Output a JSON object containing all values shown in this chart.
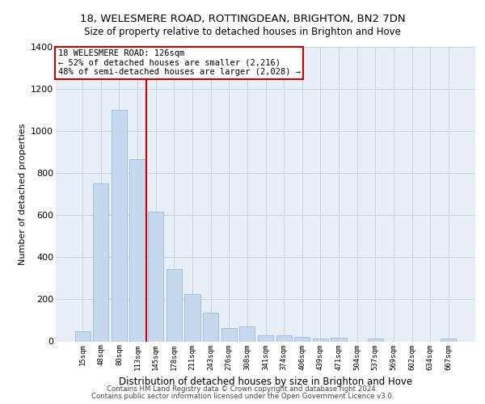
{
  "title": "18, WELESMERE ROAD, ROTTINGDEAN, BRIGHTON, BN2 7DN",
  "subtitle": "Size of property relative to detached houses in Brighton and Hove",
  "xlabel": "Distribution of detached houses by size in Brighton and Hove",
  "ylabel": "Number of detached properties",
  "bar_color": "#c5d8ed",
  "bar_edge_color": "#8fb4d4",
  "grid_color": "#c8d4e4",
  "background_color": "#e8eef6",
  "annotation_box_color": "#cc0000",
  "vline_color": "#cc0000",
  "categories": [
    "15sqm",
    "48sqm",
    "80sqm",
    "113sqm",
    "145sqm",
    "178sqm",
    "211sqm",
    "243sqm",
    "276sqm",
    "308sqm",
    "341sqm",
    "374sqm",
    "406sqm",
    "439sqm",
    "471sqm",
    "504sqm",
    "537sqm",
    "569sqm",
    "602sqm",
    "634sqm",
    "667sqm"
  ],
  "values": [
    48,
    750,
    1100,
    865,
    615,
    345,
    225,
    135,
    63,
    70,
    30,
    30,
    22,
    13,
    18,
    0,
    12,
    0,
    0,
    0,
    13
  ],
  "ylim": [
    0,
    1400
  ],
  "yticks": [
    0,
    200,
    400,
    600,
    800,
    1000,
    1200,
    1400
  ],
  "vline_position": 3.5,
  "annotation_line1": "18 WELESMERE ROAD: 126sqm",
  "annotation_line2": "← 52% of detached houses are smaller (2,216)",
  "annotation_line3": "48% of semi-detached houses are larger (2,028) →",
  "footer1": "Contains HM Land Registry data © Crown copyright and database right 2024.",
  "footer2": "Contains public sector information licensed under the Open Government Licence v3.0."
}
